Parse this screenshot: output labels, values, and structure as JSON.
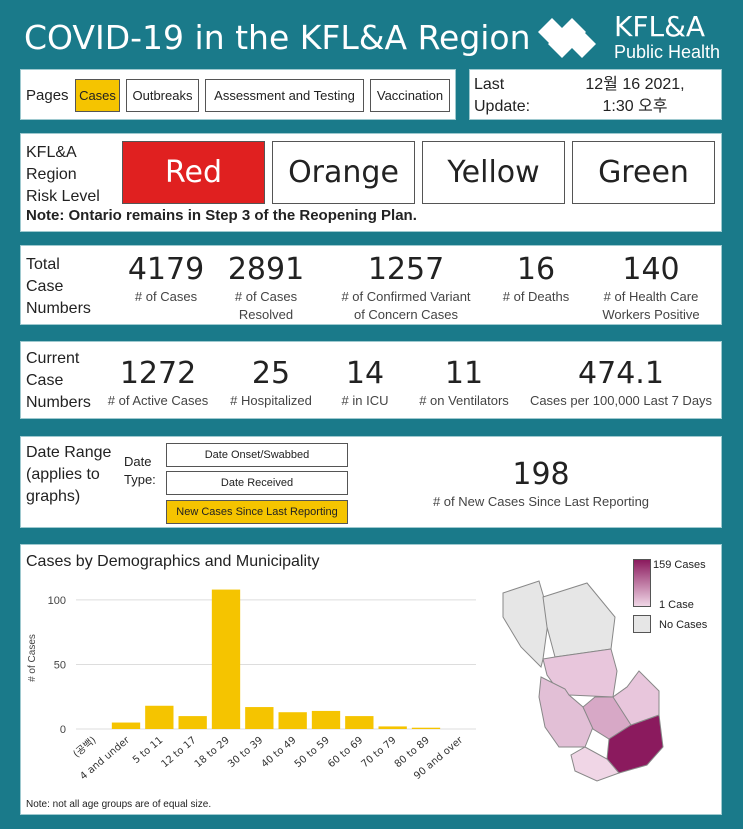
{
  "header": {
    "title": "COVID-19 in the KFL&A Region",
    "logo_main": "KFL&A",
    "logo_sub": "Public Health"
  },
  "pages": {
    "label": "Pages",
    "items": [
      "Cases",
      "Outbreaks",
      "Assessment and Testing",
      "Vaccination"
    ],
    "active": "Cases"
  },
  "last_update": {
    "label_line1": "Last",
    "label_line2": "Update:",
    "value_line1": "12월 16 2021,",
    "value_line2": "1:30 오후"
  },
  "risk": {
    "label_line1": "KFL&A",
    "label_line2": "Region",
    "label_line3": "Risk Level",
    "levels": [
      "Red",
      "Orange",
      "Yellow",
      "Green"
    ],
    "active": "Red",
    "note": "Note: Ontario remains in Step 3 of the Reopening Plan."
  },
  "totals": {
    "label_line1": "Total",
    "label_line2": "Case",
    "label_line3": "Numbers",
    "stats": [
      {
        "value": "4179",
        "label1": "# of Cases",
        "label2": ""
      },
      {
        "value": "2891",
        "label1": "# of Cases",
        "label2": "Resolved"
      },
      {
        "value": "1257",
        "label1": "# of Confirmed Variant",
        "label2": "of Concern Cases"
      },
      {
        "value": "16",
        "label1": "# of Deaths",
        "label2": ""
      },
      {
        "value": "140",
        "label1": "# of Health Care",
        "label2": "Workers Positive"
      }
    ]
  },
  "current": {
    "label_line1": "Current",
    "label_line2": "Case",
    "label_line3": "Numbers",
    "stats": [
      {
        "value": "1272",
        "label": "# of Active Cases"
      },
      {
        "value": "25",
        "label": "# Hospitalized"
      },
      {
        "value": "14",
        "label": "# in ICU"
      },
      {
        "value": "11",
        "label": "# on Ventilators"
      },
      {
        "value": "474.1",
        "label": "Cases per 100,000 Last 7 Days"
      }
    ]
  },
  "date_range": {
    "title_line1": "Date Range",
    "title_line2": "(applies to",
    "title_line3": "graphs)",
    "type_line1": "Date",
    "type_line2": "Type:",
    "options": [
      "Date Onset/Swabbed",
      "Date Received",
      "New Cases Since Last Reporting"
    ],
    "active": "New Cases Since Last Reporting",
    "new_cases_value": "198",
    "new_cases_label": "# of New Cases Since Last Reporting"
  },
  "demographics": {
    "title": "Cases by Demographics and Municipality",
    "note": "Note: not all age groups are of equal size.",
    "legend_max": "159 Cases",
    "legend_min": "1 Case",
    "legend_none": "No Cases",
    "colors": {
      "bar": "#f5c400",
      "map_high": "#8b1a5e",
      "map_low": "#f0d6e6",
      "map_none": "#e6e6e6"
    }
  },
  "chart_data": {
    "type": "bar",
    "title": "Cases by Demographics and Municipality",
    "xlabel": "",
    "ylabel": "# of Cases",
    "categories": [
      "(공백)",
      "4 and under",
      "5 to 11",
      "12 to 17",
      "18 to 29",
      "30 to 39",
      "40 to 49",
      "50 to 59",
      "60 to 69",
      "70 to 79",
      "80 to 89",
      "90 and over"
    ],
    "values": [
      0,
      5,
      18,
      10,
      108,
      17,
      13,
      14,
      10,
      2,
      1,
      0
    ],
    "ylim": [
      0,
      110
    ],
    "yticks": [
      0,
      50,
      100
    ],
    "grid": true
  }
}
